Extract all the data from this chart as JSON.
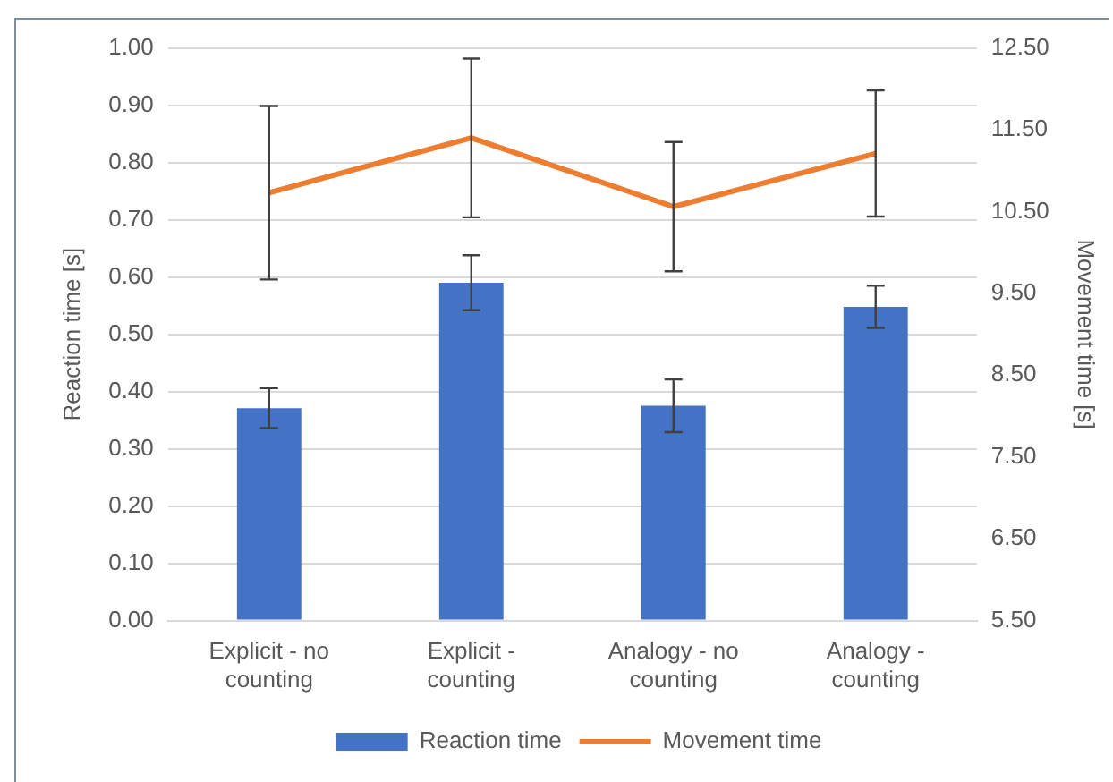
{
  "chart_data": {
    "type": "bar",
    "categories": [
      "Explicit - no counting",
      "Explicit - counting",
      "Analogy - no counting",
      "Analogy - counting"
    ],
    "series": [
      {
        "name": "Reaction time",
        "color": "#4472c4",
        "values": [
          0.371,
          0.59,
          0.375,
          0.548
        ],
        "errors": [
          0.035,
          0.048,
          0.046,
          0.037
        ]
      },
      {
        "name": "Movement time",
        "type": "line",
        "axis": "y2",
        "color": "#ed7d31",
        "values": [
          10.73,
          11.4,
          10.56,
          11.21
        ],
        "errors": [
          1.06,
          0.97,
          0.79,
          0.77
        ],
        "marker": "none"
      }
    ],
    "ylabel": "Reaction time [s]",
    "y2label": "Movement time [s]",
    "ylim": [
      0,
      1
    ],
    "yticks": [
      {
        "value": 0,
        "label": "0.00"
      },
      {
        "value": 0.1,
        "label": "0.10"
      },
      {
        "value": 0.2,
        "label": "0.20"
      },
      {
        "value": 0.3,
        "label": "0.30"
      },
      {
        "value": 0.4,
        "label": "0.40"
      },
      {
        "value": 0.5,
        "label": "0.50"
      },
      {
        "value": 0.6,
        "label": "0.60"
      },
      {
        "value": 0.7,
        "label": "0.70"
      },
      {
        "value": 0.8,
        "label": "0.80"
      },
      {
        "value": 0.9,
        "label": "0.90"
      },
      {
        "value": 1,
        "label": "1.00"
      }
    ],
    "y2lim": [
      5.5,
      12.5
    ],
    "y2ticks": [
      {
        "value": 5.5,
        "label": "5.50"
      },
      {
        "value": 6.5,
        "label": "6.50"
      },
      {
        "value": 7.5,
        "label": "7.50"
      },
      {
        "value": 8.5,
        "label": "8.50"
      },
      {
        "value": 9.5,
        "label": "9.50"
      },
      {
        "value": 10.5,
        "label": "10.50"
      },
      {
        "value": 11.5,
        "label": "11.50"
      },
      {
        "value": 12.5,
        "label": "12.50"
      }
    ],
    "grid": "y",
    "legend": "bottom"
  }
}
